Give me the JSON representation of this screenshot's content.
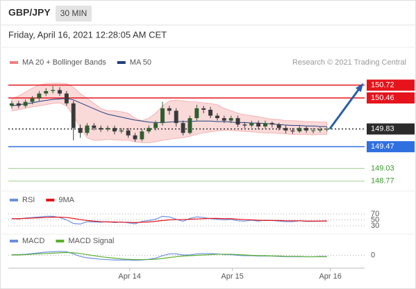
{
  "header": {
    "symbol": "GBP/JPY",
    "interval": "30 MIN",
    "date": "Friday, April 16, 2021 12:28:05 AM CET"
  },
  "chart_data": [
    {
      "type": "candlestick",
      "source": "Research © 2021 Trading Central",
      "xlim": [
        0,
        52
      ],
      "ylim": [
        148.64,
        151.01
      ],
      "candles": {
        "up_color": "#2f5f2f",
        "down_color": "#3a3a3a",
        "open": [
          150.3,
          150.35,
          150.3,
          150.38,
          150.45,
          150.55,
          150.6,
          150.62,
          150.55,
          150.35,
          149.85,
          149.75,
          149.9,
          149.85,
          149.82,
          149.85,
          149.78,
          149.8,
          149.7,
          149.62,
          149.78,
          149.85,
          149.95,
          150.25,
          150.2,
          149.95,
          149.75,
          150.05,
          150.25,
          150.22,
          150.1,
          150.05,
          150.0,
          150.05,
          149.92,
          149.9,
          149.95,
          149.88,
          149.95,
          149.92,
          149.85,
          149.8,
          149.78,
          149.85,
          149.8,
          149.8,
          149.82
        ],
        "high": [
          150.4,
          150.4,
          150.43,
          150.5,
          150.6,
          150.66,
          150.7,
          150.68,
          150.6,
          150.4,
          149.92,
          149.95,
          149.95,
          149.9,
          149.9,
          149.9,
          149.85,
          149.85,
          149.75,
          149.83,
          149.9,
          150.0,
          150.38,
          150.3,
          150.25,
          150.0,
          150.1,
          150.32,
          150.3,
          150.28,
          150.15,
          150.1,
          150.1,
          150.1,
          149.97,
          150.0,
          150.0,
          150.0,
          149.98,
          149.95,
          149.9,
          149.85,
          149.9,
          149.88,
          149.85,
          149.87,
          149.87
        ],
        "low": [
          150.25,
          150.25,
          150.26,
          150.33,
          150.4,
          150.5,
          150.55,
          150.5,
          150.3,
          149.6,
          149.65,
          149.7,
          149.8,
          149.77,
          149.78,
          149.72,
          149.74,
          149.65,
          149.57,
          149.58,
          149.74,
          149.8,
          149.9,
          150.12,
          149.88,
          149.7,
          149.72,
          150.0,
          150.15,
          150.05,
          150.0,
          149.95,
          149.95,
          149.87,
          149.85,
          149.86,
          149.82,
          149.84,
          149.86,
          149.8,
          149.74,
          149.73,
          149.75,
          149.75,
          149.74,
          149.76,
          149.78
        ],
        "close": [
          150.35,
          150.3,
          150.38,
          150.45,
          150.55,
          150.6,
          150.62,
          150.55,
          150.35,
          149.85,
          149.75,
          149.9,
          149.85,
          149.82,
          149.85,
          149.78,
          149.8,
          149.7,
          149.62,
          149.78,
          149.85,
          149.95,
          150.25,
          150.2,
          149.95,
          149.75,
          150.05,
          150.25,
          150.22,
          150.1,
          150.05,
          150.0,
          150.05,
          149.92,
          149.9,
          149.95,
          149.88,
          149.95,
          149.92,
          149.85,
          149.8,
          149.78,
          149.85,
          149.8,
          149.8,
          149.82,
          149.83
        ]
      },
      "series": [
        {
          "name": "MA 20 + Bollinger Bands",
          "color": "#f08080",
          "upper": [
            150.45,
            150.5,
            150.58,
            150.66,
            150.72,
            150.75,
            150.76,
            150.76,
            150.75,
            150.68,
            150.55,
            150.45,
            150.35,
            150.25,
            150.2,
            150.2,
            150.18,
            150.15,
            150.05,
            150.0,
            150.05,
            150.15,
            150.3,
            150.4,
            150.42,
            150.4,
            150.38,
            150.38,
            150.36,
            150.35,
            150.32,
            150.25,
            150.2,
            150.15,
            150.12,
            150.1,
            150.08,
            150.05,
            150.03,
            150.02,
            150.0,
            150.0,
            149.99,
            149.98,
            149.98,
            149.97,
            149.97
          ],
          "lower": [
            150.2,
            150.22,
            150.25,
            150.28,
            150.3,
            150.32,
            150.35,
            150.36,
            150.3,
            150.1,
            149.85,
            149.65,
            149.6,
            149.6,
            149.62,
            149.61,
            149.6,
            149.6,
            149.57,
            149.55,
            149.55,
            149.57,
            149.6,
            149.62,
            149.64,
            149.65,
            149.68,
            149.72,
            149.75,
            149.77,
            149.79,
            149.8,
            149.8,
            149.79,
            149.78,
            149.77,
            149.76,
            149.75,
            149.75,
            149.74,
            149.73,
            149.72,
            149.72,
            149.72,
            149.71,
            149.72,
            149.72
          ]
        },
        {
          "name": "MA 50",
          "color": "#1f3f7f",
          "values": [
            150.3,
            150.32,
            150.34,
            150.36,
            150.39,
            150.41,
            150.43,
            150.44,
            150.45,
            150.42,
            150.36,
            150.3,
            150.24,
            150.18,
            150.13,
            150.1,
            150.07,
            150.04,
            150.01,
            149.99,
            149.97,
            149.96,
            149.96,
            149.97,
            149.98,
            149.98,
            149.98,
            149.99,
            149.99,
            149.99,
            149.98,
            149.98,
            149.97,
            149.96,
            149.96,
            149.95,
            149.95,
            149.94,
            149.93,
            149.92,
            149.91,
            149.9,
            149.9,
            149.89,
            149.89,
            149.88,
            149.88
          ]
        }
      ],
      "levels": [
        {
          "value": 150.72,
          "color": "#e5141c",
          "style": "box",
          "line": "solid"
        },
        {
          "value": 150.46,
          "color": "#e5141c",
          "style": "box",
          "line": "solid"
        },
        {
          "value": 149.83,
          "color": "#2b2b2b",
          "style": "box",
          "line": "dotted"
        },
        {
          "value": 149.47,
          "color": "#2f6fe0",
          "style": "box",
          "line": "solid"
        },
        {
          "value": 149.03,
          "color": "#3a9a2a",
          "style": "text",
          "line": "solid"
        },
        {
          "value": 148.77,
          "color": "#3a9a2a",
          "style": "text",
          "line": "solid"
        }
      ]
    },
    {
      "type": "line",
      "xlim": [
        0,
        52
      ],
      "ylim": [
        0,
        100
      ],
      "yticks": [
        70,
        50,
        30
      ],
      "grid": true,
      "series": [
        {
          "name": "RSI",
          "color": "#6d8fe0",
          "values": [
            55,
            53,
            56,
            58,
            60,
            62,
            62,
            58,
            50,
            38,
            36,
            44,
            43,
            42,
            44,
            41,
            43,
            40,
            37,
            45,
            48,
            52,
            62,
            60,
            52,
            45,
            55,
            60,
            58,
            54,
            52,
            50,
            52,
            47,
            46,
            49,
            46,
            49,
            48,
            46,
            44,
            44,
            47,
            45,
            45,
            46,
            47
          ]
        },
        {
          "name": "9MA",
          "color": "#e5141c",
          "values": [
            54,
            54,
            55,
            56,
            57,
            58,
            59,
            59,
            58,
            55,
            51,
            48,
            46,
            44,
            43,
            43,
            42,
            42,
            41,
            42,
            43,
            45,
            48,
            50,
            51,
            51,
            52,
            53,
            54,
            55,
            55,
            54,
            54,
            52,
            51,
            50,
            49,
            48,
            48,
            48,
            47,
            47,
            47,
            46,
            46,
            46,
            46
          ]
        }
      ]
    },
    {
      "type": "line",
      "xlim": [
        0,
        52
      ],
      "ylim": [
        -0.3,
        0.3
      ],
      "yticks": [
        0
      ],
      "grid": true,
      "xticks": [
        {
          "value": 17.7,
          "label": "Apr 14"
        },
        {
          "value": 32.7,
          "label": "Apr 15"
        },
        {
          "value": 47,
          "label": "Apr 16"
        }
      ],
      "series": [
        {
          "name": "MACD",
          "color": "#6d8fe0",
          "values": [
            0.02,
            0.02,
            0.03,
            0.05,
            0.07,
            0.09,
            0.1,
            0.11,
            0.1,
            0.04,
            -0.03,
            -0.07,
            -0.09,
            -0.11,
            -0.12,
            -0.13,
            -0.13,
            -0.13,
            -0.14,
            -0.13,
            -0.11,
            -0.08,
            -0.01,
            0.04,
            0.04,
            0.01,
            0.01,
            0.04,
            0.05,
            0.05,
            0.04,
            0.02,
            0.02,
            0.0,
            -0.01,
            -0.01,
            -0.02,
            -0.02,
            -0.02,
            -0.03,
            -0.04,
            -0.04,
            -0.04,
            -0.04,
            -0.04,
            -0.03,
            -0.03
          ]
        },
        {
          "name": "MACD Signal",
          "color": "#5cb030",
          "values": [
            0.01,
            0.01,
            0.02,
            0.03,
            0.04,
            0.05,
            0.06,
            0.07,
            0.08,
            0.07,
            0.05,
            0.02,
            -0.01,
            -0.04,
            -0.06,
            -0.08,
            -0.1,
            -0.11,
            -0.12,
            -0.12,
            -0.12,
            -0.11,
            -0.09,
            -0.06,
            -0.04,
            -0.02,
            -0.01,
            0.0,
            0.01,
            0.02,
            0.03,
            0.03,
            0.03,
            0.02,
            0.01,
            0.0,
            -0.01,
            -0.01,
            -0.02,
            -0.02,
            -0.03,
            -0.03,
            -0.03,
            -0.04,
            -0.04,
            -0.04,
            -0.04
          ]
        }
      ]
    }
  ]
}
